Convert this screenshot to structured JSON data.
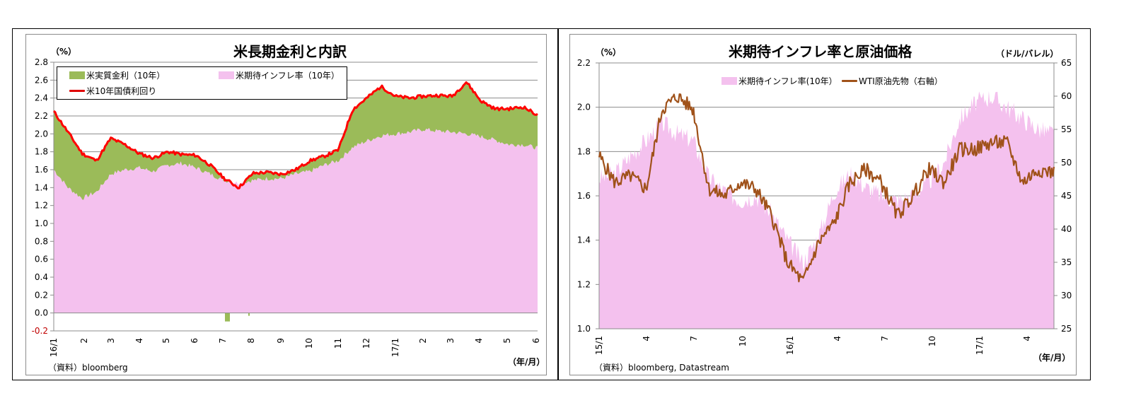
{
  "colors": {
    "real_rate": "#9bbb59",
    "inflation": "#f4c1ee",
    "yield10": "#ff0000",
    "wti": "#a0521a",
    "grid": "#8c8c8c",
    "negative_tick": "#c00000"
  },
  "left_chart": {
    "title": "米長期金利と内訳",
    "unit_label": "（%）",
    "xunit_label": "（年/月）",
    "source": "（資料）bloomberg",
    "legend": {
      "real_rate": "米実質金利（10年）",
      "inflation": "米期待インフレ率（10年）",
      "yield10": "米10年国債利回り"
    }
  },
  "right_chart": {
    "title": "米期待インフレ率と原油価格",
    "unit_label_left": "（%）",
    "unit_label_right": "（ドル/バレル）",
    "xunit_label": "（年/月）",
    "source": "（資料）bloomberg, Datastream",
    "legend": {
      "inflation": "米期待インフレ率(10年）",
      "wti": "WTI原油先物（右軸）"
    }
  },
  "chart_data": [
    {
      "type": "area",
      "title": "米長期金利と内訳",
      "ylabel": "（%）",
      "xlabel": "（年/月）",
      "ylim": [
        -0.2,
        2.8
      ],
      "yticks": [
        "2.8",
        "2.6",
        "2.4",
        "2.2",
        "2.0",
        "1.8",
        "1.6",
        "1.4",
        "1.2",
        "1.0",
        "0.8",
        "0.6",
        "0.4",
        "0.2",
        "0.0",
        "-0.2"
      ],
      "xticks": [
        "16/1",
        "2",
        "3",
        "4",
        "5",
        "6",
        "7",
        "8",
        "9",
        "10",
        "11",
        "12",
        "17/1",
        "2",
        "3",
        "4",
        "5",
        "6"
      ],
      "grid": true,
      "legend_position": "top-left inside",
      "stacked": true,
      "x": [
        "16/1",
        "16/1m",
        "16/2",
        "16/2m",
        "16/3",
        "16/3m",
        "16/4",
        "16/4m",
        "16/5",
        "16/5m",
        "16/6",
        "16/6m",
        "16/7",
        "16/7m",
        "16/8",
        "16/8m",
        "16/9",
        "16/9m",
        "16/10",
        "16/10m",
        "16/11",
        "16/11m",
        "16/12",
        "16/12m",
        "17/1",
        "17/1m",
        "17/2",
        "17/2m",
        "17/3",
        "17/3m",
        "17/4",
        "17/4m",
        "17/5",
        "17/5m",
        "17/6"
      ],
      "series": [
        {
          "name": "米期待インフレ率（10年）",
          "kind": "area",
          "values": [
            1.6,
            1.4,
            1.28,
            1.35,
            1.55,
            1.6,
            1.62,
            1.58,
            1.65,
            1.67,
            1.62,
            1.55,
            1.48,
            1.45,
            1.48,
            1.5,
            1.5,
            1.55,
            1.58,
            1.65,
            1.7,
            1.85,
            1.92,
            1.98,
            2.0,
            2.02,
            2.05,
            2.03,
            2.02,
            2.0,
            1.97,
            1.93,
            1.88,
            1.88,
            1.84
          ]
        },
        {
          "name": "米実質金利（10年）",
          "kind": "area",
          "values": [
            0.65,
            0.62,
            0.5,
            0.35,
            0.4,
            0.28,
            0.16,
            0.15,
            0.15,
            0.1,
            0.14,
            0.1,
            0.02,
            -0.05,
            0.08,
            0.07,
            0.05,
            0.05,
            0.12,
            0.1,
            0.12,
            0.42,
            0.48,
            0.55,
            0.42,
            0.38,
            0.37,
            0.4,
            0.4,
            0.58,
            0.4,
            0.35,
            0.4,
            0.42,
            0.37
          ]
        },
        {
          "name": "米10年国債利回り",
          "kind": "line",
          "values": [
            2.25,
            2.02,
            1.78,
            1.7,
            1.95,
            1.88,
            1.78,
            1.73,
            1.8,
            1.77,
            1.76,
            1.65,
            1.5,
            1.4,
            1.56,
            1.57,
            1.55,
            1.6,
            1.7,
            1.75,
            1.82,
            2.27,
            2.4,
            2.53,
            2.42,
            2.4,
            2.42,
            2.43,
            2.42,
            2.58,
            2.37,
            2.28,
            2.28,
            2.3,
            2.21
          ]
        }
      ]
    },
    {
      "type": "line",
      "title": "米期待インフレ率と原油価格",
      "ylabel": "（%）",
      "y2label": "（ドル/バレル）",
      "xlabel": "（年/月）",
      "ylim": [
        1.0,
        2.2
      ],
      "y2lim": [
        25,
        65
      ],
      "yticks": [
        "2.2",
        "2.0",
        "1.8",
        "1.6",
        "1.4",
        "1.2",
        "1.0"
      ],
      "y2ticks": [
        "65",
        "60",
        "55",
        "50",
        "45",
        "40",
        "35",
        "30",
        "25"
      ],
      "xticks": [
        "15/1",
        "4",
        "7",
        "10",
        "16/1",
        "4",
        "7",
        "10",
        "17/1",
        "4"
      ],
      "grid": true,
      "legend_position": "top inside",
      "x": [
        "15/1",
        "15/2",
        "15/3",
        "15/4",
        "15/5",
        "15/6",
        "15/7",
        "15/8",
        "15/9",
        "15/10",
        "15/11",
        "15/12",
        "16/1",
        "16/2",
        "16/3",
        "16/4",
        "16/5",
        "16/6",
        "16/7",
        "16/8",
        "16/9",
        "16/10",
        "16/11",
        "16/12",
        "17/1",
        "17/2",
        "17/3",
        "17/4",
        "17/5",
        "17/5e"
      ],
      "series": [
        {
          "name": "米期待インフレ率(10年）",
          "kind": "area",
          "axis": "left",
          "values": [
            1.68,
            1.7,
            1.78,
            1.85,
            1.93,
            1.88,
            1.85,
            1.68,
            1.62,
            1.58,
            1.6,
            1.52,
            1.4,
            1.3,
            1.42,
            1.62,
            1.7,
            1.64,
            1.6,
            1.58,
            1.6,
            1.66,
            1.75,
            1.95,
            2.02,
            2.05,
            2.0,
            1.95,
            1.9,
            1.88
          ]
        },
        {
          "name": "WTI原油先物（右軸）",
          "kind": "line",
          "axis": "right",
          "values": [
            51,
            47,
            48,
            46,
            58,
            60,
            58,
            46,
            45,
            47,
            46,
            42,
            35,
            32,
            38,
            41,
            47,
            49,
            47,
            42,
            45,
            49,
            47,
            52,
            52,
            53,
            53,
            47,
            49,
            48.5
          ]
        }
      ]
    }
  ]
}
